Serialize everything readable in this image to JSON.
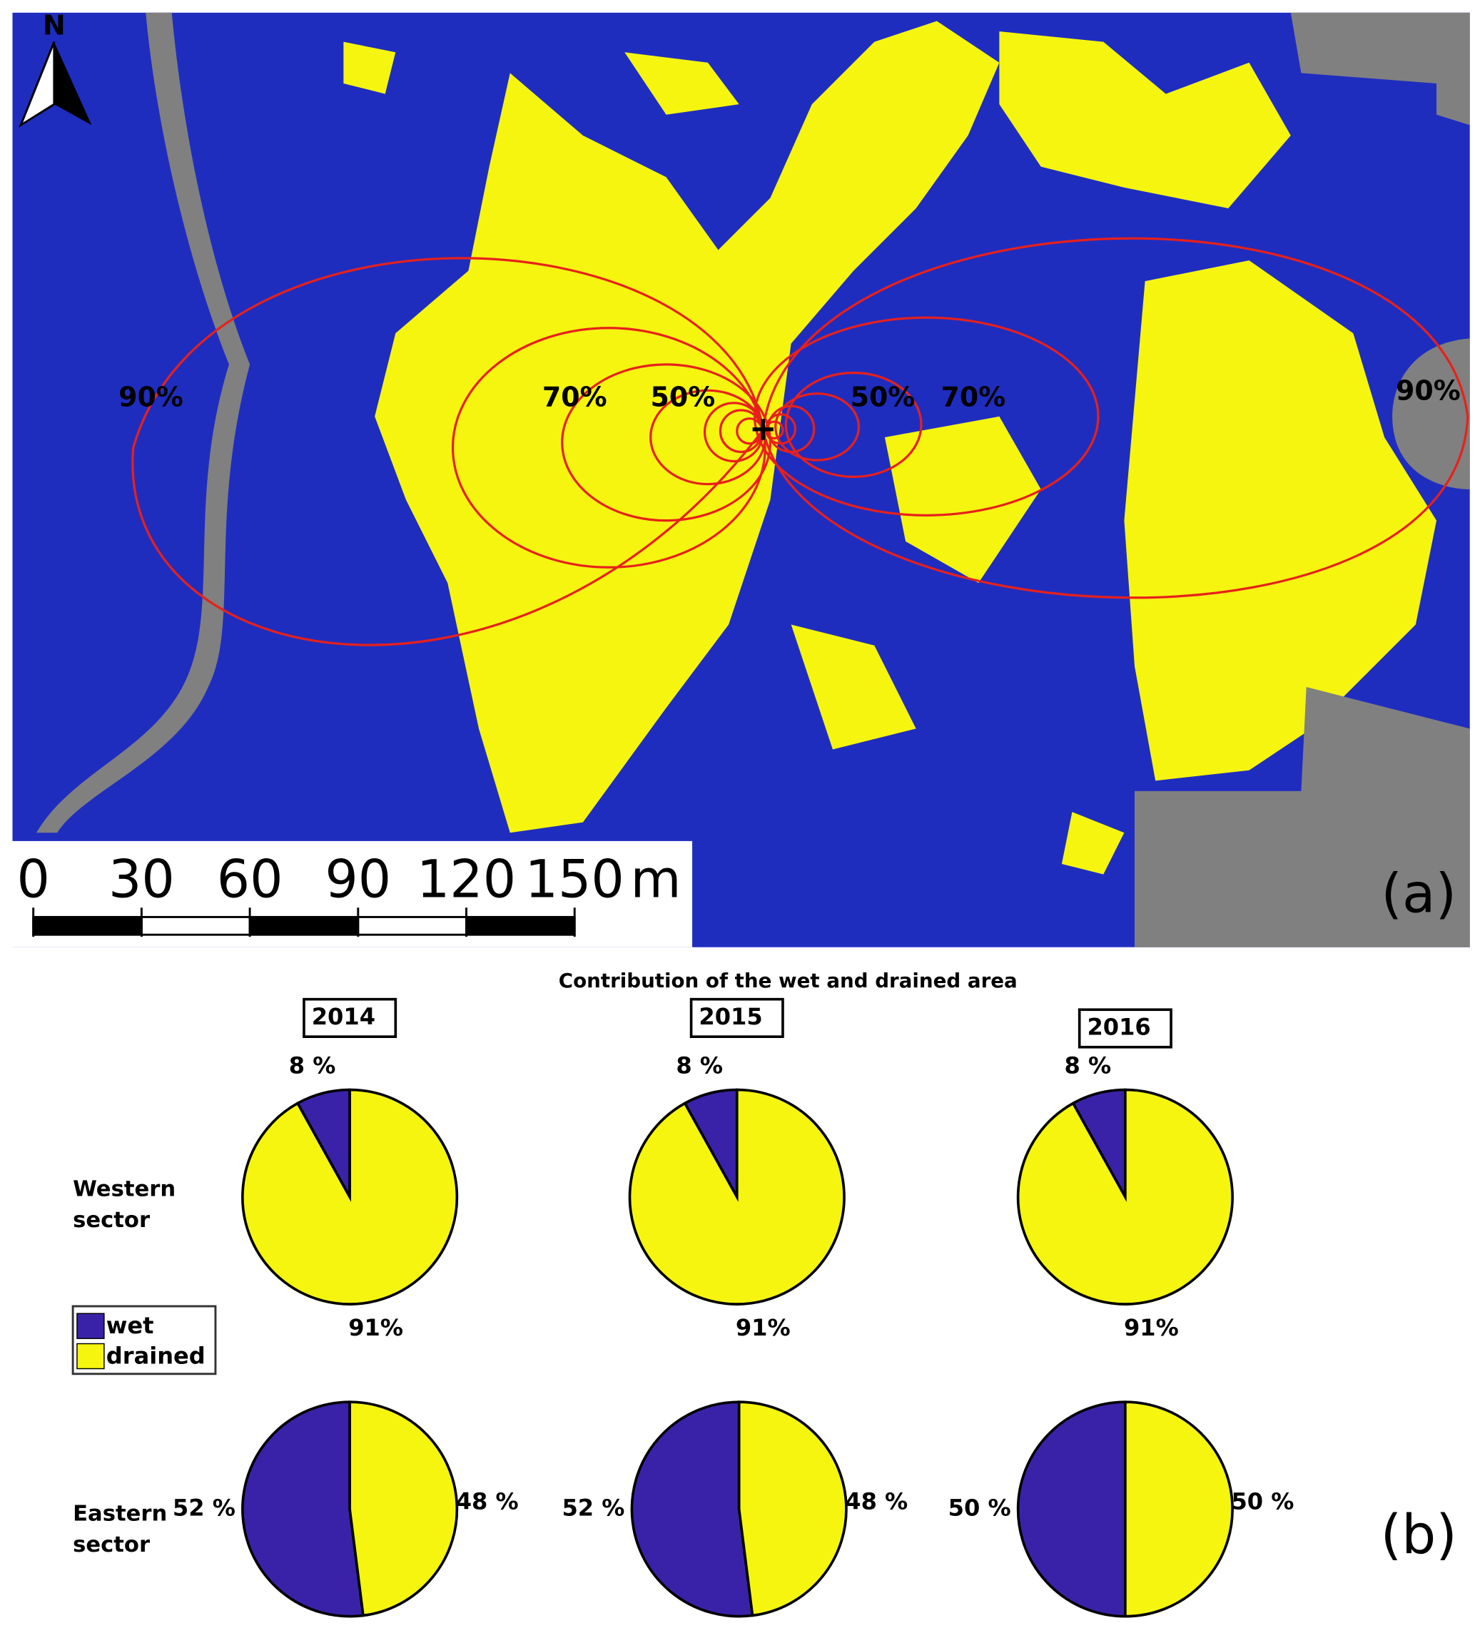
{
  "panel_a": {
    "label": "(a)",
    "north": "N",
    "contour_labels": [
      "90%",
      "70%",
      "50%",
      "50%",
      "70%",
      "90%"
    ],
    "scale_bar": {
      "ticks": [
        0,
        30,
        60,
        90,
        120,
        150
      ],
      "unit": "m"
    }
  },
  "panel_b": {
    "label": "(b)",
    "title": "Contribution of the wet and drained area",
    "rows": [
      "Western sector",
      "Eastern sector"
    ]
  },
  "chart_data": [
    {
      "type": "pie",
      "title": "2014",
      "categories": [
        "wet",
        "drained"
      ],
      "colors": [
        "#3a22a8",
        "#f5f510"
      ],
      "values": [
        8,
        91
      ],
      "value_labels": [
        "8 %",
        "91%"
      ]
    },
    {
      "type": "pie",
      "title": "2015",
      "categories": [
        "wet",
        "drained"
      ],
      "colors": [
        "#3a22a8",
        "#f5f510"
      ],
      "values": [
        8,
        91
      ],
      "value_labels": [
        "8 %",
        "91%"
      ]
    },
    {
      "type": "pie",
      "title": "2016",
      "categories": [
        "wet",
        "drained"
      ],
      "colors": [
        "#3a22a8",
        "#f5f510"
      ],
      "values": [
        8,
        91
      ],
      "value_labels": [
        "8 %",
        "91%"
      ]
    },
    {
      "type": "pie",
      "categories": [
        "wet",
        "drained"
      ],
      "colors": [
        "#3a22a8",
        "#f5f510"
      ],
      "values": [
        52,
        48
      ],
      "value_labels": [
        "52 %",
        "48 %"
      ]
    },
    {
      "type": "pie",
      "categories": [
        "wet",
        "drained"
      ],
      "colors": [
        "#3a22a8",
        "#f5f510"
      ],
      "values": [
        52,
        48
      ],
      "value_labels": [
        "52 %",
        "48 %"
      ]
    },
    {
      "type": "pie",
      "categories": [
        "wet",
        "drained"
      ],
      "colors": [
        "#3a22a8",
        "#f5f510"
      ],
      "values": [
        50,
        50
      ],
      "value_labels": [
        "50 %",
        "50 %"
      ]
    }
  ]
}
